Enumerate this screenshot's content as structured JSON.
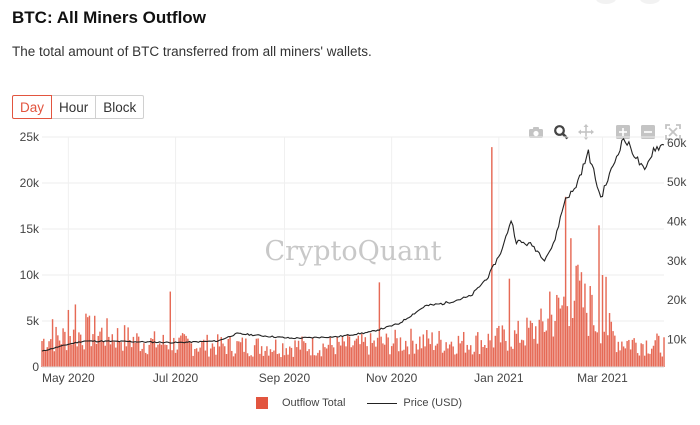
{
  "header": {
    "title": "BTC: All Miners Outflow",
    "subtitle": "The total amount of BTC transferred from all miners' wallets."
  },
  "range_tabs": [
    "Day",
    "Hour",
    "Block"
  ],
  "active_tab": "Day",
  "toolbar": [
    "camera-icon",
    "zoom-icon",
    "pan-icon",
    "zoom-in-icon",
    "zoom-out-icon",
    "autoscale-icon"
  ],
  "watermark": "CryptoQuant",
  "colors": {
    "bar": "#e2553f",
    "price_line": "#222222",
    "active": "#e2553f"
  },
  "chart_data": {
    "type": "bar",
    "x_range": [
      "2020-04-16",
      "2021-04-05"
    ],
    "x_ticks": [
      "May 2020",
      "Jul 2020",
      "Sep 2020",
      "Nov 2020",
      "Jan 2021",
      "Mar 2021"
    ],
    "y_left": {
      "ticks": [
        "0",
        "5k",
        "10k",
        "15k",
        "20k",
        "25k"
      ],
      "range": [
        0,
        25000
      ]
    },
    "y_right": {
      "ticks": [
        "10k",
        "20k",
        "30k",
        "40k",
        "50k",
        "60k"
      ],
      "range": [
        3000,
        61500
      ]
    },
    "grid": true,
    "legend_position": "bottom",
    "series": [
      {
        "name": "Outflow Total",
        "axis": "left",
        "type": "bar",
        "baseline": [
          [
            "2020-04-16",
            3000
          ],
          [
            "2020-05-15",
            4000
          ],
          [
            "2020-06-15",
            2800
          ],
          [
            "2020-07-15",
            2500
          ],
          [
            "2020-08-15",
            2400
          ],
          [
            "2020-09-15",
            2400
          ],
          [
            "2020-10-15",
            2500
          ],
          [
            "2020-11-15",
            3000
          ],
          [
            "2020-12-15",
            2800
          ],
          [
            "2021-01-10",
            3400
          ],
          [
            "2021-01-25",
            4500
          ],
          [
            "2021-02-05",
            6500
          ],
          [
            "2021-02-12",
            9000
          ],
          [
            "2021-02-22",
            6000
          ],
          [
            "2021-03-01",
            5000
          ],
          [
            "2021-03-10",
            3000
          ],
          [
            "2021-04-05",
            2500
          ]
        ],
        "peaks": [
          [
            "2020-04-22",
            5200
          ],
          [
            "2020-05-01",
            6200
          ],
          [
            "2020-05-05",
            6800
          ],
          [
            "2020-05-11",
            5800
          ],
          [
            "2020-06-28",
            8200
          ],
          [
            "2020-10-25",
            9200
          ],
          [
            "2020-12-28",
            23900
          ],
          [
            "2021-01-07",
            9600
          ],
          [
            "2021-01-30",
            8200
          ],
          [
            "2021-02-08",
            18500
          ],
          [
            "2021-02-11",
            14000
          ],
          [
            "2021-02-14",
            11000
          ],
          [
            "2021-02-22",
            8800
          ],
          [
            "2021-02-27",
            15400
          ],
          [
            "2021-03-01",
            10000
          ],
          [
            "2021-03-03",
            9800
          ]
        ]
      },
      {
        "name": "Price (USD)",
        "axis": "right",
        "type": "line",
        "points": [
          [
            "2020-04-16",
            7000
          ],
          [
            "2020-05-01",
            8800
          ],
          [
            "2020-05-10",
            9600
          ],
          [
            "2020-06-01",
            9500
          ],
          [
            "2020-07-01",
            9200
          ],
          [
            "2020-07-25",
            9600
          ],
          [
            "2020-08-05",
            11500
          ],
          [
            "2020-09-05",
            10300
          ],
          [
            "2020-10-01",
            10700
          ],
          [
            "2020-10-20",
            11900
          ],
          [
            "2020-11-05",
            14000
          ],
          [
            "2020-11-20",
            18500
          ],
          [
            "2020-12-01",
            19200
          ],
          [
            "2020-12-16",
            21000
          ],
          [
            "2020-12-26",
            26000
          ],
          [
            "2021-01-03",
            33000
          ],
          [
            "2021-01-08",
            40500
          ],
          [
            "2021-01-11",
            35000
          ],
          [
            "2021-01-20",
            34000
          ],
          [
            "2021-01-27",
            30500
          ],
          [
            "2021-02-01",
            34000
          ],
          [
            "2021-02-08",
            46000
          ],
          [
            "2021-02-13",
            48000
          ],
          [
            "2021-02-21",
            57500
          ],
          [
            "2021-02-28",
            46000
          ],
          [
            "2021-03-13",
            61200
          ],
          [
            "2021-03-18",
            58000
          ],
          [
            "2021-03-25",
            52500
          ],
          [
            "2021-03-30",
            58500
          ],
          [
            "2021-04-05",
            59500
          ]
        ]
      }
    ]
  }
}
